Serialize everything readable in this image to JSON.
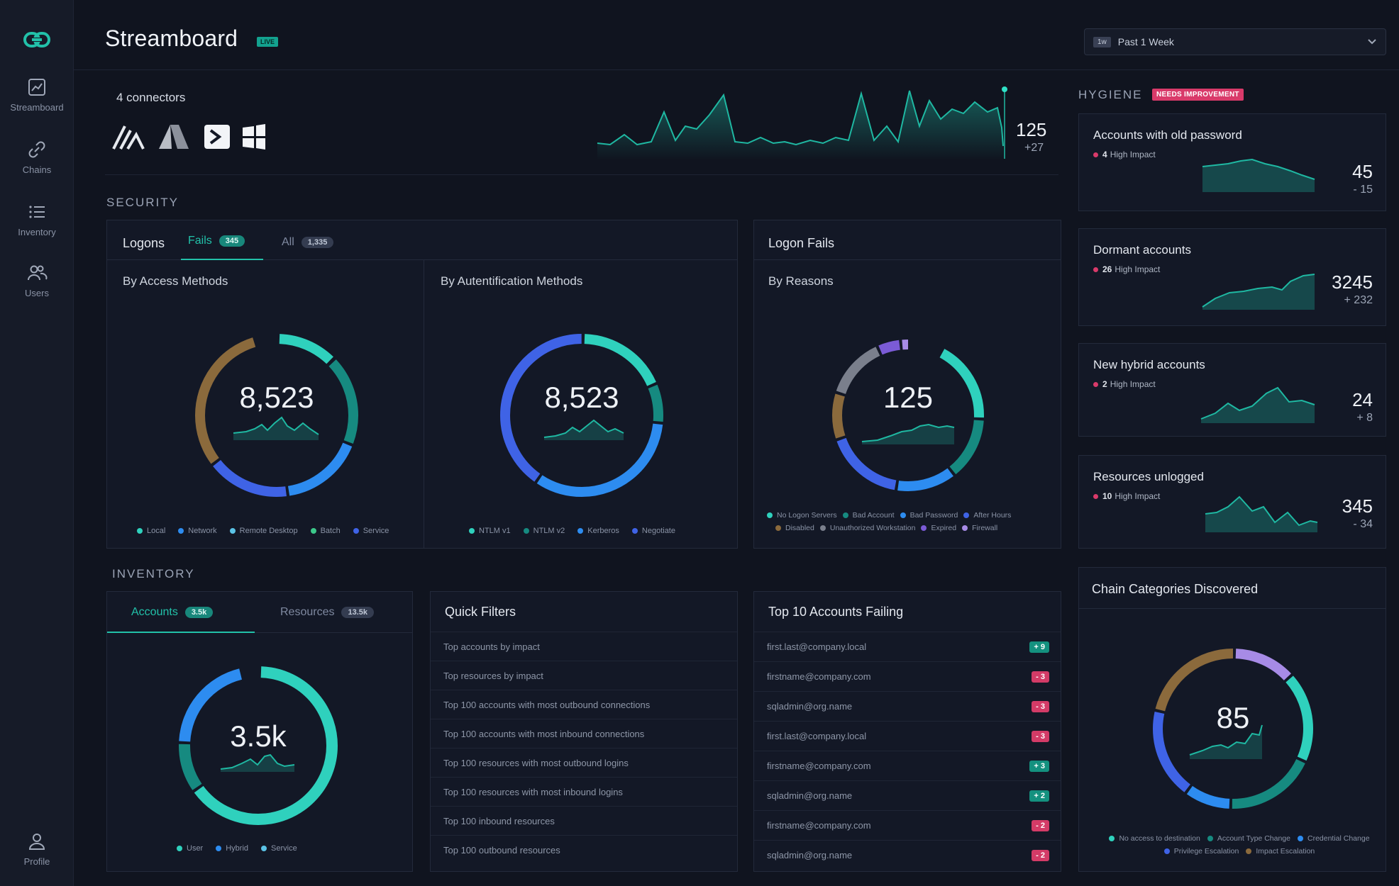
{
  "header": {
    "title": "Streamboard",
    "live": "LIVE",
    "period_tag": "1w",
    "period": "Past 1 Week"
  },
  "sidebar": {
    "items": [
      {
        "label": "Streamboard",
        "icon": "chart-icon"
      },
      {
        "label": "Chains",
        "icon": "link-icon"
      },
      {
        "label": "Inventory",
        "icon": "list-icon"
      },
      {
        "label": "Users",
        "icon": "users-icon"
      }
    ],
    "profile": "Profile"
  },
  "connectors": {
    "label": "4 connectors",
    "value": "125",
    "delta": "+27"
  },
  "security": {
    "title": "SECURITY",
    "logons": {
      "title": "Logons",
      "tabs": [
        {
          "label": "Fails",
          "count": "345"
        },
        {
          "label": "All",
          "count": "1,335"
        }
      ],
      "access": {
        "title": "By Access Methods",
        "value": "8,523",
        "legend": [
          {
            "label": "Local",
            "color": "#2fd1bd"
          },
          {
            "label": "Network",
            "color": "#2d8cf0"
          },
          {
            "label": "Remote Desktop",
            "color": "#5bc3e6"
          },
          {
            "label": "Batch",
            "color": "#3cc88a"
          },
          {
            "label": "Service",
            "color": "#3f63e6"
          }
        ]
      },
      "auth": {
        "title": "By Autentification Methods",
        "value": "8,523",
        "legend": [
          {
            "label": "NTLM v1",
            "color": "#2fd1bd"
          },
          {
            "label": "NTLM v2",
            "color": "#168a80"
          },
          {
            "label": "Kerberos",
            "color": "#2d8cf0"
          },
          {
            "label": "Negotiate",
            "color": "#3f63e6"
          }
        ]
      }
    },
    "logon_fails": {
      "title": "Logon Fails",
      "reasons": {
        "title": "By Reasons",
        "value": "125",
        "legend": [
          {
            "label": "No Logon Servers",
            "color": "#2fd1bd"
          },
          {
            "label": "Bad Account",
            "color": "#168a80"
          },
          {
            "label": "Bad Password",
            "color": "#2d8cf0"
          },
          {
            "label": "After Hours",
            "color": "#3f63e6"
          },
          {
            "label": "Disabled",
            "color": "#8b6a3c"
          },
          {
            "label": "Unauthorized Workstation",
            "color": "#7a7f8c"
          },
          {
            "label": "Expired",
            "color": "#7b5bd6"
          },
          {
            "label": "Firewall",
            "color": "#a78be6"
          }
        ]
      }
    }
  },
  "hygiene": {
    "title": "HYGIENE",
    "badge": "NEEDS IMPROVEMENT",
    "cards": [
      {
        "title": "Accounts with  old password",
        "impact_count": "4",
        "impact_label": "High Impact",
        "value": "45",
        "delta": "- 15"
      },
      {
        "title": "Dormant accounts",
        "impact_count": "26",
        "impact_label": "High Impact",
        "value": "3245",
        "delta": "+ 232"
      },
      {
        "title": "New hybrid accounts",
        "impact_count": "2",
        "impact_label": "High Impact",
        "value": "24",
        "delta": "+ 8"
      },
      {
        "title": "Resources unlogged",
        "impact_count": "10",
        "impact_label": "High Impact",
        "value": "345",
        "delta": "- 34"
      }
    ]
  },
  "inventory": {
    "title": "INVENTORY",
    "tabs": [
      {
        "label": "Accounts",
        "count": "3.5k"
      },
      {
        "label": "Resources",
        "count": "13.5k"
      }
    ],
    "value": "3.5k",
    "legend": [
      {
        "label": "User",
        "color": "#2fd1bd"
      },
      {
        "label": "Hybrid",
        "color": "#2d8cf0"
      },
      {
        "label": "Service",
        "color": "#5bc3e6"
      }
    ]
  },
  "quick_filters": {
    "title": "Quick Filters",
    "items": [
      "Top accounts by impact",
      "Top resources by impact",
      "Top 100 accounts with most outbound connections",
      "Top 100 accounts with most inbound connections",
      "Top 100 resources with most outbound logins",
      "Top 100 resources with most inbound logins",
      "Top 100 inbound resources",
      "Top 100 outbound resources"
    ]
  },
  "top_accounts": {
    "title": "Top 10 Accounts Failing",
    "rows": [
      {
        "account": "first.last@company.local",
        "change": "+ 9",
        "dir": "pos"
      },
      {
        "account": "firstname@company.com",
        "change": "- 3",
        "dir": "neg"
      },
      {
        "account": "sqladmin@org.name",
        "change": "- 3",
        "dir": "neg"
      },
      {
        "account": "first.last@company.local",
        "change": "- 3",
        "dir": "neg"
      },
      {
        "account": "firstname@company.com",
        "change": "+ 3",
        "dir": "pos"
      },
      {
        "account": "sqladmin@org.name",
        "change": "+ 2",
        "dir": "pos"
      },
      {
        "account": "firstname@company.com",
        "change": "- 2",
        "dir": "neg"
      },
      {
        "account": "sqladmin@org.name",
        "change": "- 2",
        "dir": "neg"
      }
    ]
  },
  "chain_categories": {
    "title": "Chain Categories Discovered",
    "value": "85",
    "legend": [
      {
        "label": "No access to destination",
        "color": "#2fd1bd"
      },
      {
        "label": "Account Type Change",
        "color": "#168a80"
      },
      {
        "label": "Credential Change",
        "color": "#2d8cf0"
      },
      {
        "label": "Privilege Escalation",
        "color": "#3f63e6"
      },
      {
        "label": "Impact Escalation",
        "color": "#8b6a3c"
      }
    ]
  }
}
